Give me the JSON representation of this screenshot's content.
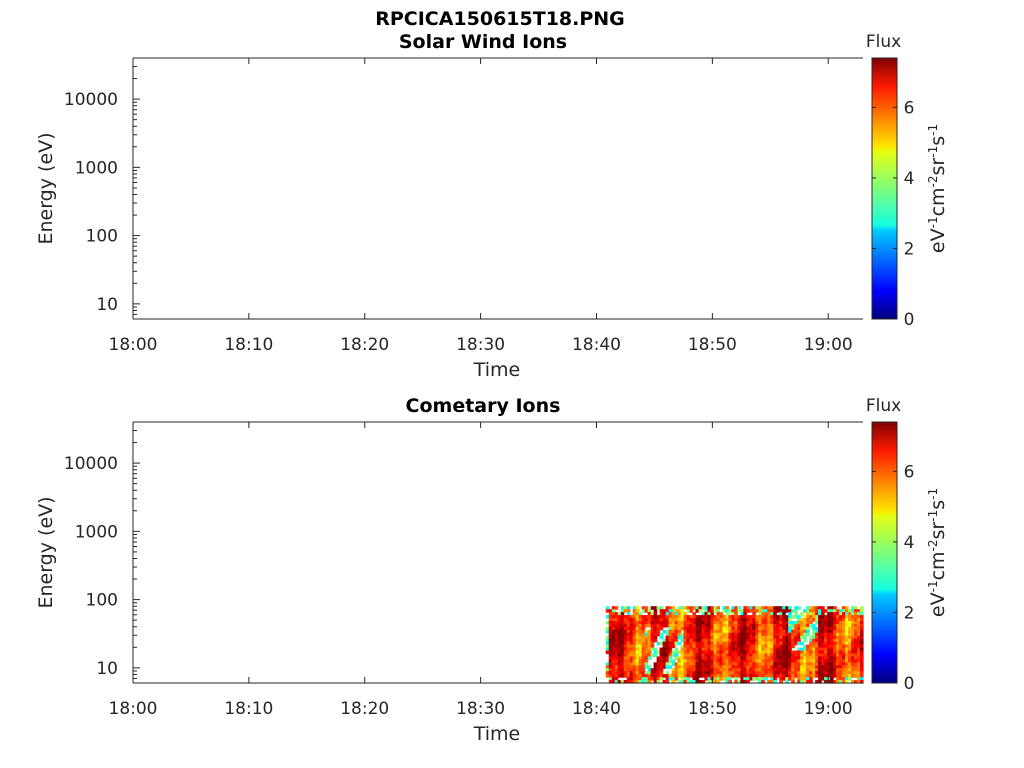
{
  "figure_title": "RPCICA150615T18.PNG",
  "chart_data": [
    {
      "type": "heatmap",
      "title": "Solar Wind Ions",
      "xlabel": "Time",
      "ylabel": "Energy (eV)",
      "x_ticks": [
        "18:00",
        "18:10",
        "18:20",
        "18:30",
        "18:40",
        "18:50",
        "19:00"
      ],
      "xlim_minutes": [
        0,
        63
      ],
      "y_scale": "log",
      "y_ticks": [
        "10",
        "100",
        "1000",
        "10000"
      ],
      "ylim": [
        6,
        40000
      ],
      "colorbar": {
        "title": "Flux",
        "label": "eV-1cm-2sr-1s-1",
        "ticks": [
          "0",
          "2",
          "4",
          "6"
        ],
        "range": [
          0,
          7.4
        ],
        "colormap": "jet"
      },
      "data_extent": null
    },
    {
      "type": "heatmap",
      "title": "Cometary Ions",
      "xlabel": "Time",
      "ylabel": "Energy (eV)",
      "x_ticks": [
        "18:00",
        "18:10",
        "18:20",
        "18:30",
        "18:40",
        "18:50",
        "19:00"
      ],
      "xlim_minutes": [
        0,
        63
      ],
      "y_scale": "log",
      "y_ticks": [
        "10",
        "100",
        "1000",
        "10000"
      ],
      "ylim": [
        6,
        40000
      ],
      "colorbar": {
        "title": "Flux",
        "label": "eV-1cm-2sr-1s-1",
        "ticks": [
          "0",
          "2",
          "4",
          "6"
        ],
        "range": [
          0,
          7.4
        ],
        "colormap": "jet"
      },
      "data_extent": {
        "t_start_minutes": 40.8,
        "t_end_minutes": 63,
        "energy_min": 6,
        "energy_max": 80,
        "typical_flux": 6.3
      }
    }
  ]
}
